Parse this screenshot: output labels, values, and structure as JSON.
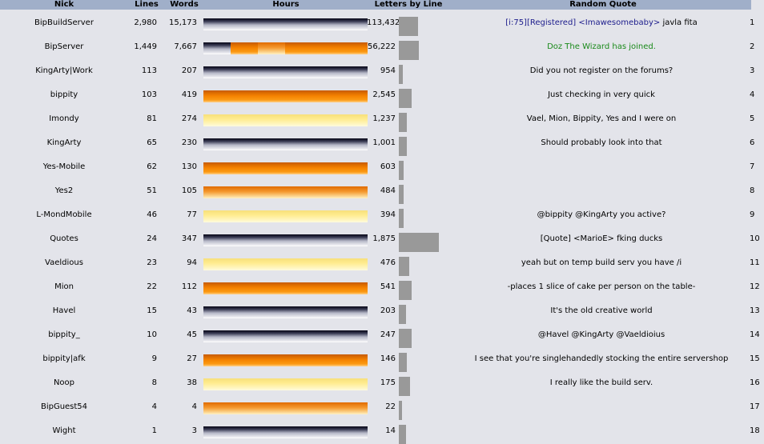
{
  "headers": {
    "nick": "Nick",
    "lines": "Lines",
    "words": "Words",
    "hours": "Hours",
    "letters_by_line": "Letters by Line",
    "random_quote": "Random Quote"
  },
  "colors": {
    "header_bg": "#a0afc9",
    "page_bg": "#e3e4ea",
    "letters_bar": "#999999",
    "registered_link": "#1c1c8c",
    "join_message": "#1a8a1a"
  },
  "rows": [
    {
      "rank": "1",
      "nick": "BipBuildServer",
      "lines": "2,980",
      "words": "15,173",
      "hours": "night",
      "letters": "113,432",
      "letters_per_line": 38.1,
      "quote_prefix": "[i:75][Registered] <Imawesomebaby>",
      "quote": " javla fita",
      "quote_style": "registered"
    },
    {
      "rank": "2",
      "nick": "BipServer",
      "lines": "1,449",
      "words": "7,667",
      "hours": "mixed",
      "letters": "56,222",
      "letters_per_line": 38.8,
      "quote_prefix": "",
      "quote": "Doz The Wizard has joined.",
      "quote_style": "join"
    },
    {
      "rank": "3",
      "nick": "KingArty|Work",
      "lines": "113",
      "words": "207",
      "hours": "night",
      "letters": "954",
      "letters_per_line": 8.4,
      "quote_prefix": "",
      "quote": "Did you not register on the forums?",
      "quote_style": ""
    },
    {
      "rank": "4",
      "nick": "bippity",
      "lines": "103",
      "words": "419",
      "hours": "orange",
      "letters": "2,545",
      "letters_per_line": 24.7,
      "quote_prefix": "",
      "quote": "Just checking in very quick",
      "quote_style": ""
    },
    {
      "rank": "5",
      "nick": "Imondy",
      "lines": "81",
      "words": "274",
      "hours": "yellow",
      "letters": "1,237",
      "letters_per_line": 15.3,
      "quote_prefix": "",
      "quote": "Vael, Mion, Bippity, Yes and I were on",
      "quote_style": ""
    },
    {
      "rank": "6",
      "nick": "KingArty",
      "lines": "65",
      "words": "230",
      "hours": "night",
      "letters": "1,001",
      "letters_per_line": 15.4,
      "quote_prefix": "",
      "quote": "Should probably look into that",
      "quote_style": ""
    },
    {
      "rank": "7",
      "nick": "Yes-Mobile",
      "lines": "62",
      "words": "130",
      "hours": "orange",
      "letters": "603",
      "letters_per_line": 9.7,
      "quote_prefix": "",
      "quote": "",
      "quote_style": ""
    },
    {
      "rank": "8",
      "nick": "Yes2",
      "lines": "51",
      "words": "105",
      "hours": "sunset",
      "letters": "484",
      "letters_per_line": 9.5,
      "quote_prefix": "",
      "quote": "",
      "quote_style": ""
    },
    {
      "rank": "9",
      "nick": "L-MondMobile",
      "lines": "46",
      "words": "77",
      "hours": "yellow",
      "letters": "394",
      "letters_per_line": 8.6,
      "quote_prefix": "",
      "quote": "@bippity @KingArty you active?",
      "quote_style": ""
    },
    {
      "rank": "10",
      "nick": "Quotes",
      "lines": "24",
      "words": "347",
      "hours": "night",
      "letters": "1,875",
      "letters_per_line": 78.1,
      "quote_prefix": "",
      "quote": "[Quote] <MarioE> fking ducks",
      "quote_style": ""
    },
    {
      "rank": "11",
      "nick": "Vaeldious",
      "lines": "23",
      "words": "94",
      "hours": "yellow",
      "letters": "476",
      "letters_per_line": 20.7,
      "quote_prefix": "",
      "quote": "yeah but on temp build serv you have /i",
      "quote_style": ""
    },
    {
      "rank": "12",
      "nick": "Mion",
      "lines": "22",
      "words": "112",
      "hours": "orange",
      "letters": "541",
      "letters_per_line": 24.6,
      "quote_prefix": "",
      "quote": "-places 1 slice of cake per person on the table-",
      "quote_style": ""
    },
    {
      "rank": "13",
      "nick": "Havel",
      "lines": "15",
      "words": "43",
      "hours": "night",
      "letters": "203",
      "letters_per_line": 13.5,
      "quote_prefix": "",
      "quote": "It's the old creative world",
      "quote_style": ""
    },
    {
      "rank": "14",
      "nick": "bippity_",
      "lines": "10",
      "words": "45",
      "hours": "night",
      "letters": "247",
      "letters_per_line": 24.7,
      "quote_prefix": "",
      "quote": "@Havel @KingArty @Vaeldioius",
      "quote_style": ""
    },
    {
      "rank": "15",
      "nick": "bippity|afk",
      "lines": "9",
      "words": "27",
      "hours": "orange",
      "letters": "146",
      "letters_per_line": 16.2,
      "quote_prefix": "",
      "quote": "I see that you're singlehandedly stocking the entire servershop",
      "quote_style": ""
    },
    {
      "rank": "16",
      "nick": "Noop",
      "lines": "8",
      "words": "38",
      "hours": "yellow",
      "letters": "175",
      "letters_per_line": 21.9,
      "quote_prefix": "",
      "quote": "I really like the build serv.",
      "quote_style": ""
    },
    {
      "rank": "17",
      "nick": "BipGuest54",
      "lines": "4",
      "words": "4",
      "hours": "sunset",
      "letters": "22",
      "letters_per_line": 5.5,
      "quote_prefix": "",
      "quote": "",
      "quote_style": ""
    },
    {
      "rank": "18",
      "nick": "Wight",
      "lines": "1",
      "words": "3",
      "hours": "night",
      "letters": "14",
      "letters_per_line": 14,
      "quote_prefix": "",
      "quote": "",
      "quote_style": ""
    }
  ]
}
